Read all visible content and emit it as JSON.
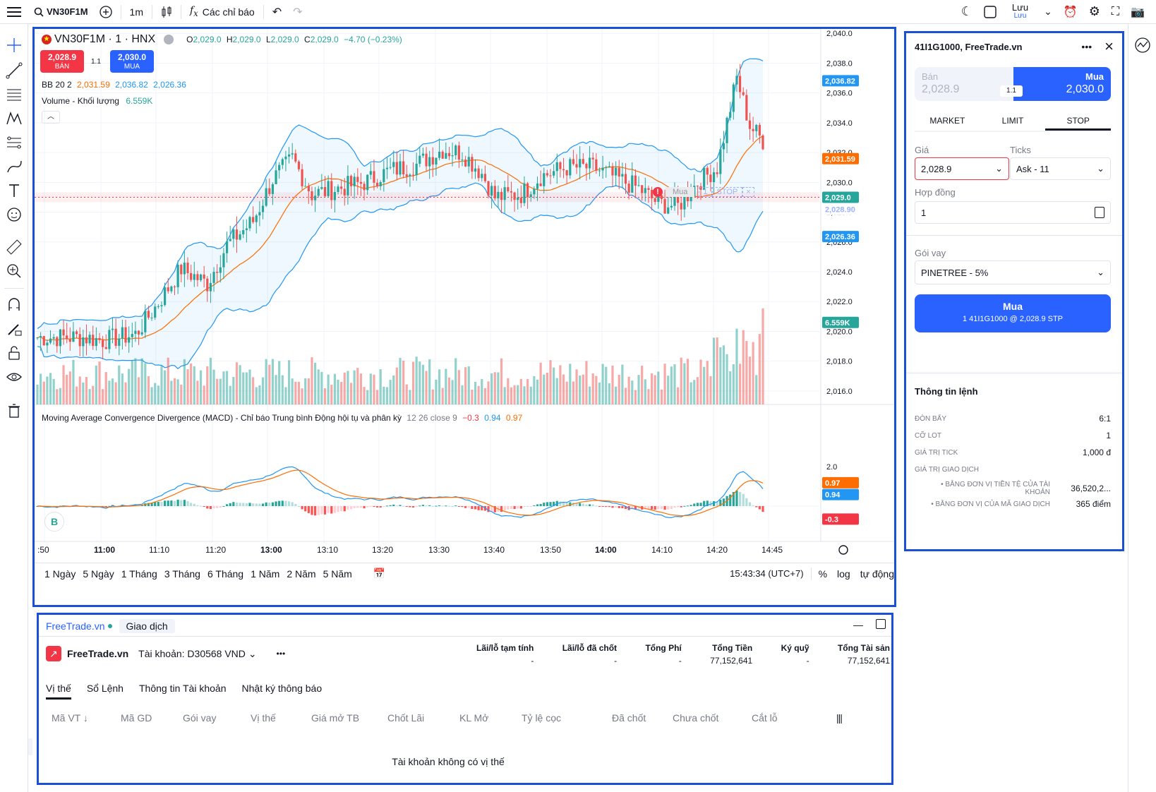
{
  "topbar": {
    "symbol": "VN30F1M",
    "interval": "1m",
    "indicators_label": "Các chỉ báo",
    "save_label": "Lưu",
    "save_sub": "Lưu"
  },
  "chart": {
    "symbol": "VN30F1M · 1 · HNX",
    "ohlc": {
      "o": "2,029.0",
      "h": "2,029.0",
      "l": "2,029.0",
      "c": "2,029.0",
      "chg": "−4.70 (−0.23%)"
    },
    "sell_price": "2,028.9",
    "sell_label": "BÁN",
    "spread": "1.1",
    "buy_price": "2,030.0",
    "buy_label": "MUA",
    "bb_label": "BB 20 2",
    "bb_values": [
      "2,031.59",
      "2,036.82",
      "2,026.36"
    ],
    "volume_label": "Volume - Khối lượng",
    "volume_value": "6.559K",
    "macd_label": "Moving Average Convergence Divergence (MACD) - Chỉ báo Trung bình Động hội tụ và phân kỳ",
    "macd_params": "12 26 close 9",
    "macd_values": [
      "−0.3",
      "0.94",
      "0.97"
    ],
    "price_axis": [
      "2,040.0",
      "2,038.0",
      "2,036.0",
      "2,034.0",
      "2,032.0",
      "2,030.0",
      "2,028.0",
      "2,026.0",
      "2,024.0",
      "2,022.0",
      "2,020.0",
      "2,018.0",
      "2,016.0"
    ],
    "price_tags": {
      "bb_upper": "2,036.82",
      "bb_mid": "2,031.59",
      "last": "2,029.0",
      "stop": "2,028.90",
      "bb_lower": "2,026.36",
      "volume": "6.559K"
    },
    "macd_axis": [
      "2.0"
    ],
    "macd_tags": [
      "0.97",
      "0.94",
      "-0.3"
    ],
    "time_axis": [
      ":50",
      "11:00",
      "11:10",
      "11:20",
      "13:00",
      "13:10",
      "13:20",
      "13:30",
      "13:40",
      "13:50",
      "14:00",
      "14:10",
      "14:20",
      "14:45"
    ],
    "order_line": {
      "side": "Mua",
      "qty": "1",
      "type": "STOP"
    },
    "ranges": [
      "1 Ngày",
      "5 Ngày",
      "1 Tháng",
      "3 Tháng",
      "6 Tháng",
      "1 Năm",
      "2 Năm",
      "5 Năm"
    ],
    "clock": "15:43:34 (UTC+7)",
    "percent_label": "%",
    "log_label": "log",
    "auto_label": "tự động",
    "colors": {
      "up": "#26a69a",
      "down": "#ef5350",
      "bb": "#2196f3",
      "bb_mid": "#ff6d00",
      "accent": "#2962ff"
    }
  },
  "order_panel": {
    "title": "41I1G1000, FreeTrade.vn",
    "sell_label": "Bán",
    "sell_price": "2,028.9",
    "spread": "1.1",
    "buy_label": "Mua",
    "buy_price": "2,030.0",
    "tabs": [
      "MARKET",
      "LIMIT",
      "STOP"
    ],
    "price_label": "Giá",
    "price_value": "2,028.9",
    "ticks_label": "Ticks",
    "ticks_value": "Ask - 11",
    "contract_label": "Hợp đồng",
    "contract_value": "1",
    "loan_label": "Gói vay",
    "loan_value": "PINETREE - 5%",
    "submit_title": "Mua",
    "submit_sub": "1 41I1G1000 @ 2,028.9 STP",
    "info_title": "Thông tin lệnh",
    "info": [
      {
        "k": "ĐÒN BẨY",
        "v": "6:1"
      },
      {
        "k": "CỠ LOT",
        "v": "1"
      },
      {
        "k": "GIÁ TRỊ TICK",
        "v": "1,000 đ"
      },
      {
        "k": "GIÁ TRỊ GIAO DỊCH",
        "v": ""
      }
    ],
    "sub_info": [
      {
        "k": "BẰNG ĐƠN VỊ TIỀN TỆ CỦA TÀI KHOẢN",
        "v": "36,520,2..."
      },
      {
        "k": "BẰNG ĐƠN VỊ CỦA MÃ GIAO DỊCH",
        "v": "365 điểm"
      }
    ]
  },
  "bottom": {
    "broker_tab": "FreeTrade.vn",
    "trade_tab": "Giao dịch",
    "broker_name": "FreeTrade.vn",
    "account": "Tài khoản: D30568 VND",
    "stats": [
      {
        "k": "Lãi/lỗ tạm tính",
        "v": "-"
      },
      {
        "k": "Lãi/lỗ đã chốt",
        "v": "-"
      },
      {
        "k": "Tổng Phí",
        "v": "-"
      },
      {
        "k": "Tổng Tiền",
        "v": "77,152,641"
      },
      {
        "k": "Ký quỹ",
        "v": "-"
      },
      {
        "k": "Tổng Tài sản",
        "v": "77,152,641"
      }
    ],
    "tabs": [
      "Vị thế",
      "Sổ Lệnh",
      "Thông tin Tài khoản",
      "Nhật ký thông báo"
    ],
    "columns": [
      "Mã VT ↓",
      "Mã GD",
      "Gói vay",
      "Vị thế",
      "Giá mở TB",
      "Chốt Lãi",
      "KL Mở",
      "Tỷ lệ cọc",
      "Đã chốt",
      "Chưa chốt",
      "Cắt lỗ"
    ],
    "empty": "Tài khoản không có vị thế"
  }
}
